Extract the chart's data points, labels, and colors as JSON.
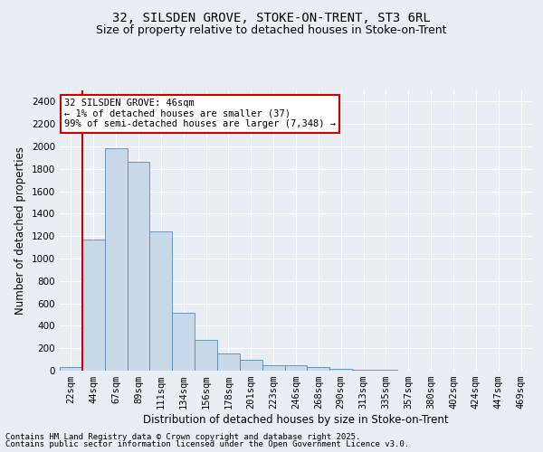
{
  "title1": "32, SILSDEN GROVE, STOKE-ON-TRENT, ST3 6RL",
  "title2": "Size of property relative to detached houses in Stoke-on-Trent",
  "xlabel": "Distribution of detached houses by size in Stoke-on-Trent",
  "ylabel": "Number of detached properties",
  "categories": [
    "22sqm",
    "44sqm",
    "67sqm",
    "89sqm",
    "111sqm",
    "134sqm",
    "156sqm",
    "178sqm",
    "201sqm",
    "223sqm",
    "246sqm",
    "268sqm",
    "290sqm",
    "313sqm",
    "335sqm",
    "357sqm",
    "380sqm",
    "402sqm",
    "424sqm",
    "447sqm",
    "469sqm"
  ],
  "values": [
    35,
    1170,
    1980,
    1860,
    1240,
    520,
    275,
    155,
    95,
    45,
    45,
    35,
    20,
    12,
    7,
    4,
    3,
    3,
    2,
    2,
    2
  ],
  "bar_color": "#c8d8e8",
  "bar_edge_color": "#5a8ab0",
  "vline_color": "#cc0000",
  "ylim": [
    0,
    2500
  ],
  "yticks": [
    0,
    200,
    400,
    600,
    800,
    1000,
    1200,
    1400,
    1600,
    1800,
    2000,
    2200,
    2400
  ],
  "bg_color": "#e8eef4",
  "grid_color": "#ffffff",
  "annotation_text": "32 SILSDEN GROVE: 46sqm\n← 1% of detached houses are smaller (37)\n99% of semi-detached houses are larger (7,348) →",
  "annotation_box_color": "#ffffff",
  "annotation_box_edge_color": "#cc0000",
  "footer1": "Contains HM Land Registry data © Crown copyright and database right 2025.",
  "footer2": "Contains public sector information licensed under the Open Government Licence v3.0.",
  "title1_fontsize": 10,
  "title2_fontsize": 9,
  "xlabel_fontsize": 8.5,
  "ylabel_fontsize": 8.5,
  "tick_fontsize": 7.5,
  "annotation_fontsize": 7.5,
  "footer_fontsize": 6.5
}
